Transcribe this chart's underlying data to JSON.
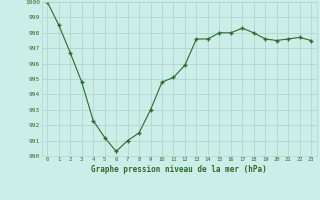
{
  "x": [
    0,
    1,
    2,
    3,
    4,
    5,
    6,
    7,
    8,
    9,
    10,
    11,
    12,
    13,
    14,
    15,
    16,
    17,
    18,
    19,
    20,
    21,
    22,
    23
  ],
  "y": [
    1000.0,
    998.5,
    996.7,
    994.8,
    992.3,
    991.2,
    990.3,
    991.0,
    991.5,
    993.0,
    994.8,
    995.1,
    995.9,
    997.6,
    997.6,
    998.0,
    998.0,
    998.3,
    998.0,
    997.6,
    997.5,
    997.6,
    997.7,
    997.5
  ],
  "ylim": [
    990,
    1000
  ],
  "yticks": [
    990,
    991,
    992,
    993,
    994,
    995,
    996,
    997,
    998,
    999,
    1000
  ],
  "xticks": [
    0,
    1,
    2,
    3,
    4,
    5,
    6,
    7,
    8,
    9,
    10,
    11,
    12,
    13,
    14,
    15,
    16,
    17,
    18,
    19,
    20,
    21,
    22,
    23
  ],
  "xlabel": "Graphe pression niveau de la mer (hPa)",
  "line_color": "#2d6a2d",
  "marker": "+",
  "bg_color": "#cceee8",
  "grid_color": "#b0d8d0",
  "text_color": "#2d6a2d",
  "figsize": [
    3.2,
    2.0
  ],
  "dpi": 100
}
